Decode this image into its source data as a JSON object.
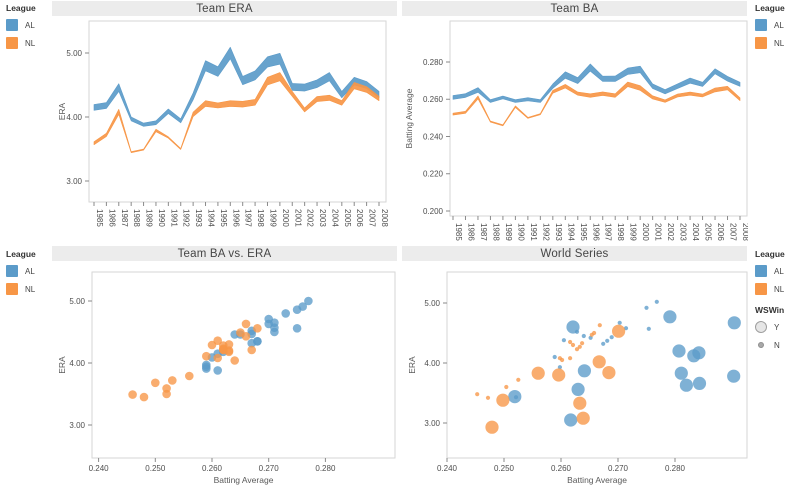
{
  "colors": {
    "al": "#5b9bc9",
    "nl": "#f79646",
    "gray_mark": "#bdbdbd"
  },
  "legend": {
    "league_title": "League",
    "al_label": "AL",
    "nl_label": "NL",
    "wswin_title": "WSWin",
    "win_label": "Y",
    "lose_label": "N"
  },
  "chart_data": [
    {
      "id": "era",
      "type": "band-line",
      "title": "Team ERA",
      "ylabel": "ERA",
      "x_tick_labels": [
        "1985",
        "1986",
        "1987",
        "1988",
        "1989",
        "1990",
        "1991",
        "1992",
        "1993",
        "1994",
        "1995",
        "1996",
        "1997",
        "1998",
        "1999",
        "2000",
        "2001",
        "2002",
        "2003",
        "2004",
        "2005",
        "2006",
        "2007",
        "2008"
      ],
      "x": [
        1985,
        1986,
        1987,
        1988,
        1989,
        1990,
        1991,
        1992,
        1993,
        1994,
        1995,
        1996,
        1997,
        1998,
        1999,
        2000,
        2001,
        2002,
        2003,
        2004,
        2005,
        2006,
        2007,
        2008
      ],
      "y_ticks": {
        "labels": [
          "5.00",
          "4.00",
          "3.00"
        ],
        "values": [
          5.0,
          4.0,
          3.0
        ]
      },
      "ylim": [
        2.45,
        5.45
      ],
      "legend_position": "left",
      "grid": false,
      "series": [
        {
          "name": "AL",
          "values": [
            4.15,
            4.18,
            4.46,
            3.97,
            3.88,
            3.91,
            4.09,
            3.94,
            4.32,
            4.8,
            4.71,
            5.0,
            4.57,
            4.65,
            4.86,
            4.91,
            4.47,
            4.46,
            4.52,
            4.63,
            4.35,
            4.56,
            4.5,
            4.35
          ],
          "band_width": [
            0.09,
            0.09,
            0.12,
            0.06,
            0.05,
            0.06,
            0.07,
            0.06,
            0.11,
            0.16,
            0.15,
            0.18,
            0.13,
            0.14,
            0.16,
            0.17,
            0.11,
            0.11,
            0.12,
            0.13,
            0.1,
            0.12,
            0.11,
            0.1
          ]
        },
        {
          "name": "NL",
          "values": [
            3.59,
            3.72,
            4.08,
            3.45,
            3.49,
            3.79,
            3.68,
            3.5,
            4.04,
            4.21,
            4.18,
            4.21,
            4.2,
            4.23,
            4.56,
            4.63,
            4.36,
            4.11,
            4.28,
            4.3,
            4.22,
            4.49,
            4.43,
            4.29
          ],
          "band_width": [
            0.045,
            0.05,
            0.08,
            0.015,
            0.015,
            0.04,
            0.02,
            0.015,
            0.07,
            0.09,
            0.08,
            0.09,
            0.09,
            0.09,
            0.12,
            0.13,
            0.08,
            0.06,
            0.08,
            0.08,
            0.07,
            0.1,
            0.09,
            0.07
          ]
        }
      ]
    },
    {
      "id": "ba",
      "type": "band-line",
      "title": "Team BA",
      "ylabel": "Batting Average",
      "x_tick_labels": [
        "1985",
        "1986",
        "1987",
        "1988",
        "1989",
        "1990",
        "1991",
        "1992",
        "1993",
        "1994",
        "1995",
        "1996",
        "1997",
        "1998",
        "1999",
        "2000",
        "2001",
        "2002",
        "2003",
        "2004",
        "2005",
        "2006",
        "2007",
        "2008"
      ],
      "x": [
        1985,
        1986,
        1987,
        1988,
        1989,
        1990,
        1991,
        1992,
        1993,
        1994,
        1995,
        1996,
        1997,
        1998,
        1999,
        2000,
        2001,
        2002,
        2003,
        2004,
        2005,
        2006,
        2007,
        2008
      ],
      "y_ticks": {
        "labels": [
          "0.280",
          "0.260",
          "0.240",
          "0.220",
          "0.200"
        ],
        "values": [
          0.28,
          0.26,
          0.24,
          0.22,
          0.2
        ]
      },
      "ylim": [
        0.196,
        0.292
      ],
      "legend_position": "right",
      "grid": false,
      "series": [
        {
          "name": "AL",
          "values": [
            0.261,
            0.262,
            0.265,
            0.259,
            0.261,
            0.259,
            0.26,
            0.259,
            0.267,
            0.273,
            0.27,
            0.277,
            0.271,
            0.271,
            0.275,
            0.276,
            0.267,
            0.264,
            0.267,
            0.27,
            0.268,
            0.275,
            0.271,
            0.268
          ],
          "band_width": [
            0.002,
            0.002,
            0.0025,
            0.0015,
            0.0015,
            0.0015,
            0.0017,
            0.0015,
            0.0024,
            0.0035,
            0.0032,
            0.0038,
            0.0028,
            0.0029,
            0.0034,
            0.0035,
            0.0025,
            0.0023,
            0.0025,
            0.0028,
            0.0022,
            0.0027,
            0.0025,
            0.0022
          ]
        },
        {
          "name": "NL",
          "values": [
            0.252,
            0.253,
            0.261,
            0.248,
            0.246,
            0.256,
            0.25,
            0.252,
            0.264,
            0.267,
            0.263,
            0.262,
            0.263,
            0.262,
            0.268,
            0.266,
            0.261,
            0.259,
            0.262,
            0.263,
            0.262,
            0.265,
            0.266,
            0.26
          ],
          "band_width": [
            0.001,
            0.0011,
            0.0016,
            0.0004,
            0.0004,
            0.0009,
            0.0005,
            0.0004,
            0.0015,
            0.0019,
            0.0017,
            0.0019,
            0.0019,
            0.0019,
            0.0024,
            0.0025,
            0.0017,
            0.0013,
            0.0016,
            0.0017,
            0.0015,
            0.0021,
            0.0019,
            0.0016
          ]
        }
      ]
    },
    {
      "id": "scatter",
      "type": "scatter",
      "title": "Team BA vs. ERA",
      "xlabel": "Batting Average",
      "ylabel": "ERA",
      "x_ticks": {
        "labels": [
          "0.240",
          "0.250",
          "0.260",
          "0.270",
          "0.280"
        ],
        "values": [
          0.24,
          0.25,
          0.26,
          0.27,
          0.28
        ]
      },
      "y_ticks": {
        "labels": [
          "5.00",
          "4.00",
          "3.00"
        ],
        "values": [
          5.0,
          4.0,
          3.0
        ]
      },
      "xlim": [
        0.2375,
        0.2925
      ],
      "ylim": [
        2.45,
        5.45
      ],
      "legend_position": "left",
      "series": [
        {
          "name": "AL",
          "points": [
            [
              0.261,
              4.15
            ],
            [
              0.262,
              4.18
            ],
            [
              0.265,
              4.46
            ],
            [
              0.259,
              3.97
            ],
            [
              0.261,
              3.88
            ],
            [
              0.259,
              3.91
            ],
            [
              0.26,
              4.09
            ],
            [
              0.259,
              3.94
            ],
            [
              0.267,
              4.32
            ],
            [
              0.273,
              4.8
            ],
            [
              0.27,
              4.71
            ],
            [
              0.277,
              5.0
            ],
            [
              0.271,
              4.57
            ],
            [
              0.271,
              4.65
            ],
            [
              0.275,
              4.86
            ],
            [
              0.276,
              4.91
            ],
            [
              0.267,
              4.47
            ],
            [
              0.264,
              4.46
            ],
            [
              0.267,
              4.52
            ],
            [
              0.27,
              4.63
            ],
            [
              0.268,
              4.35
            ],
            [
              0.275,
              4.56
            ],
            [
              0.271,
              4.5
            ],
            [
              0.268,
              4.35
            ]
          ]
        },
        {
          "name": "NL",
          "points": [
            [
              0.252,
              3.59
            ],
            [
              0.253,
              3.72
            ],
            [
              0.261,
              4.08
            ],
            [
              0.248,
              3.45
            ],
            [
              0.246,
              3.49
            ],
            [
              0.256,
              3.79
            ],
            [
              0.25,
              3.68
            ],
            [
              0.252,
              3.5
            ],
            [
              0.264,
              4.04
            ],
            [
              0.267,
              4.21
            ],
            [
              0.263,
              4.18
            ],
            [
              0.262,
              4.21
            ],
            [
              0.263,
              4.2
            ],
            [
              0.262,
              4.23
            ],
            [
              0.268,
              4.56
            ],
            [
              0.266,
              4.63
            ],
            [
              0.261,
              4.36
            ],
            [
              0.259,
              4.11
            ],
            [
              0.262,
              4.28
            ],
            [
              0.263,
              4.3
            ],
            [
              0.262,
              4.22
            ],
            [
              0.265,
              4.49
            ],
            [
              0.266,
              4.43
            ],
            [
              0.26,
              4.29
            ]
          ]
        }
      ]
    },
    {
      "id": "ws",
      "type": "scatter",
      "title": "World Series",
      "xlabel": "Batting Average",
      "ylabel": "ERA",
      "x_ticks": {
        "labels": [
          "0.240",
          "0.250",
          "0.260",
          "0.270",
          "0.280"
        ],
        "values": [
          0.24,
          0.25,
          0.26,
          0.27,
          0.28
        ]
      },
      "y_ticks": {
        "labels": [
          "5.00",
          "4.00",
          "3.00"
        ],
        "values": [
          5.0,
          4.0,
          3.0
        ]
      },
      "xlim": [
        0.2375,
        0.2925
      ],
      "ylim": [
        2.45,
        5.45
      ],
      "legend_position": "right",
      "size_legend": {
        "title": "WSWin",
        "big": "Y",
        "small": "N"
      },
      "series": [
        {
          "name": "AL",
          "wswin": "Y",
          "points": [
            [
              0.2621,
              4.6
            ],
            [
              0.2791,
              4.77
            ],
            [
              0.2904,
              4.67
            ],
            [
              0.2807,
              4.2
            ],
            [
              0.2833,
              4.12
            ],
            [
              0.2842,
              4.17
            ],
            [
              0.2811,
              3.83
            ],
            [
              0.282,
              3.63
            ],
            [
              0.2843,
              3.66
            ],
            [
              0.2903,
              3.78
            ],
            [
              0.2641,
              3.87
            ],
            [
              0.263,
              3.56
            ],
            [
              0.2617,
              3.05
            ],
            [
              0.2519,
              3.44
            ]
          ]
        },
        {
          "name": "NL",
          "wswin": "Y",
          "points": [
            [
              0.2479,
              2.93
            ],
            [
              0.2498,
              3.38
            ],
            [
              0.256,
              3.83
            ],
            [
              0.2596,
              3.8
            ],
            [
              0.2667,
              4.02
            ],
            [
              0.2684,
              3.84
            ],
            [
              0.2701,
              4.53
            ],
            [
              0.2633,
              3.33
            ],
            [
              0.2639,
              3.08
            ]
          ]
        },
        {
          "name": "AL",
          "wswin": "N",
          "points": [
            [
              0.2589,
              4.1
            ],
            [
              0.2605,
              4.38
            ],
            [
              0.2628,
              4.52
            ],
            [
              0.264,
              4.45
            ],
            [
              0.2652,
              4.42
            ],
            [
              0.2674,
              4.32
            ],
            [
              0.2681,
              4.37
            ],
            [
              0.2689,
              4.43
            ],
            [
              0.2703,
              4.67
            ],
            [
              0.2714,
              4.58
            ],
            [
              0.2754,
              4.57
            ],
            [
              0.275,
              4.92
            ],
            [
              0.2768,
              5.02
            ],
            [
              0.2598,
              3.93
            ],
            [
              0.2521,
              3.43
            ]
          ]
        },
        {
          "name": "NL",
          "wswin": "N",
          "points": [
            [
              0.2453,
              3.48
            ],
            [
              0.2472,
              3.42
            ],
            [
              0.2504,
              3.6
            ],
            [
              0.2525,
              3.72
            ],
            [
              0.2598,
              4.08
            ],
            [
              0.2602,
              4.05
            ],
            [
              0.2616,
              4.08
            ],
            [
              0.2616,
              4.35
            ],
            [
              0.2621,
              4.3
            ],
            [
              0.2628,
              4.23
            ],
            [
              0.2633,
              4.27
            ],
            [
              0.2637,
              4.33
            ],
            [
              0.2654,
              4.47
            ],
            [
              0.2658,
              4.5
            ],
            [
              0.2668,
              4.63
            ]
          ]
        }
      ]
    }
  ]
}
